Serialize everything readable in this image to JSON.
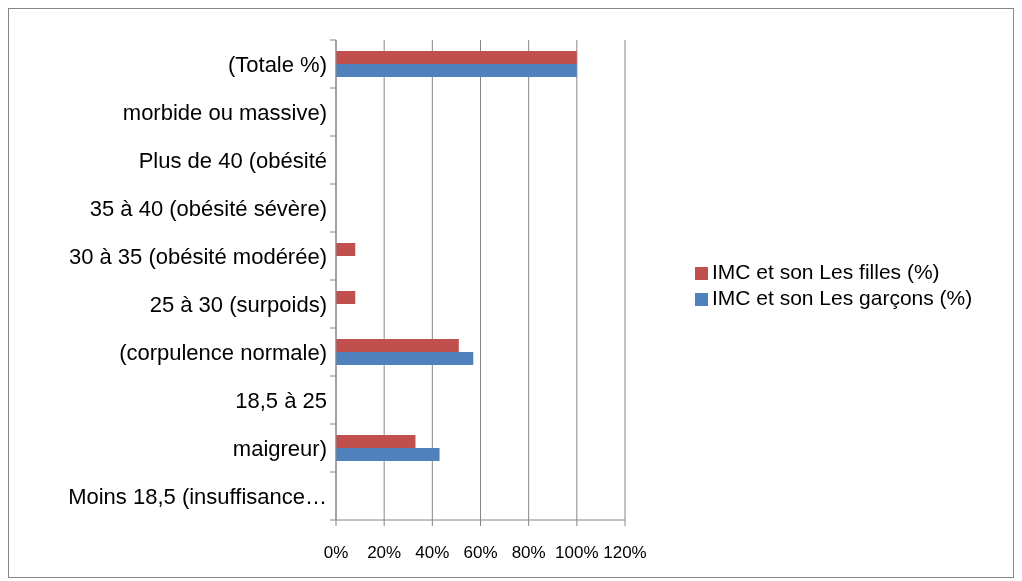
{
  "chart_data": {
    "type": "bar",
    "orientation": "horizontal",
    "categories": [
      "(Totale %)",
      "morbide ou massive)",
      "Plus de 40 (obésité",
      "35 à 40 (obésité sévère)",
      "30 à 35 (obésité modérée)",
      "25 à 30 (surpoids)",
      "(corpulence normale)",
      "18,5 à 25",
      "maigreur)",
      "Moins 18,5 (insuffisance…"
    ],
    "series": [
      {
        "name": "IMC et son Les filles (%)",
        "color": "#c0504d",
        "values": [
          100,
          null,
          null,
          null,
          8,
          8,
          51,
          null,
          33,
          null
        ]
      },
      {
        "name": "IMC et son Les garçons (%)",
        "color": "#4f81bd",
        "values": [
          100,
          null,
          null,
          null,
          null,
          null,
          57,
          null,
          43,
          null
        ]
      }
    ],
    "xlim": [
      0,
      120
    ],
    "xticks": [
      {
        "value": 0,
        "label": "0%"
      },
      {
        "value": 20,
        "label": "20%"
      },
      {
        "value": 40,
        "label": "40%"
      },
      {
        "value": 60,
        "label": "60%"
      },
      {
        "value": 80,
        "label": "80%"
      },
      {
        "value": 100,
        "label": "100%"
      },
      {
        "value": 120,
        "label": "120%"
      }
    ],
    "grid": "x",
    "legend": "right"
  }
}
